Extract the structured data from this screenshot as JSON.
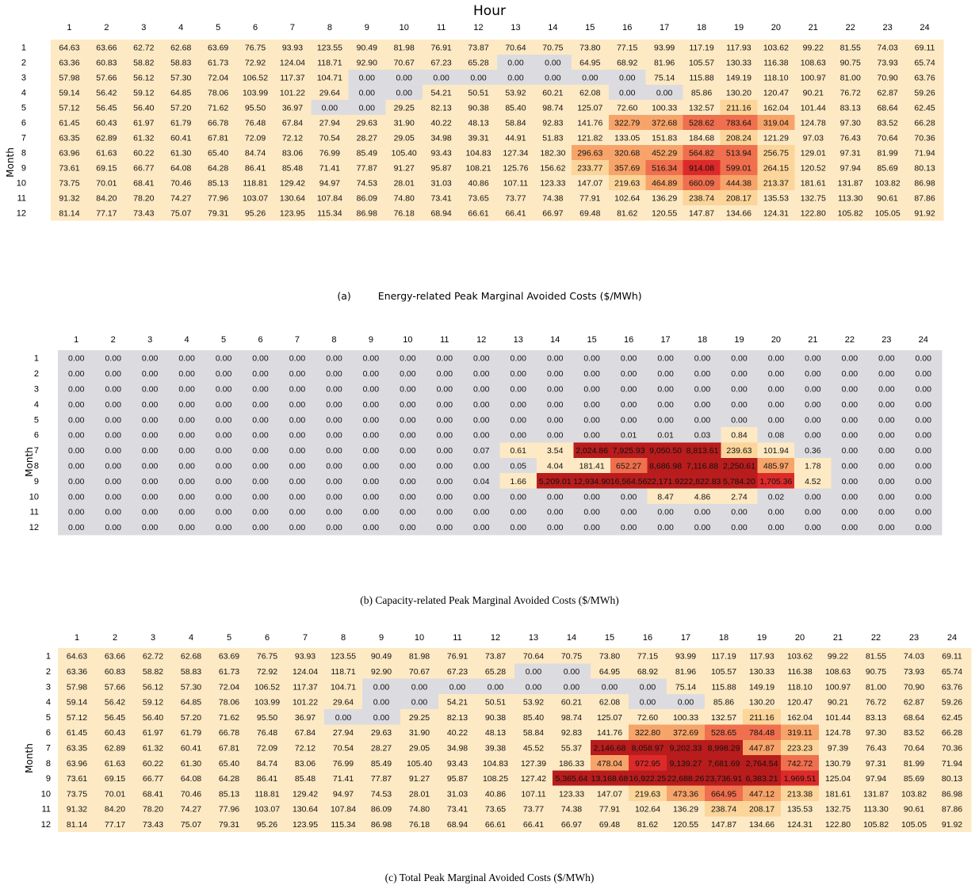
{
  "figure": {
    "top_title": "Hour",
    "caption_a_tag": "(a)",
    "caption_a_text": "Energy-related Peak Marginal Avoided Costs ($/MWh)",
    "caption_b": "(b) Capacity-related Peak Marginal Avoided Costs ($/MWh)",
    "caption_c": "(c) Total Peak Marginal Avoided Costs ($/MWh)"
  },
  "chart_data": [
    {
      "type": "heatmap",
      "title": "Energy-related Peak Marginal Avoided Costs ($/MWh)",
      "xlabel": "Hour",
      "ylabel": "Month",
      "x": [
        "1",
        "2",
        "3",
        "4",
        "5",
        "6",
        "7",
        "8",
        "9",
        "10",
        "11",
        "12",
        "13",
        "14",
        "15",
        "16",
        "17",
        "18",
        "19",
        "20",
        "21",
        "22",
        "23",
        "24"
      ],
      "y": [
        "1",
        "2",
        "3",
        "4",
        "5",
        "6",
        "7",
        "8",
        "9",
        "10",
        "11",
        "12"
      ],
      "values": [
        [
          "64.63",
          "63.66",
          "62.72",
          "62.68",
          "63.69",
          "76.75",
          "93.93",
          "123.55",
          "90.49",
          "81.98",
          "76.91",
          "73.87",
          "70.64",
          "70.75",
          "73.80",
          "77.15",
          "93.99",
          "117.19",
          "117.93",
          "103.62",
          "99.22",
          "81.55",
          "74.03",
          "69.11"
        ],
        [
          "63.36",
          "60.83",
          "58.82",
          "58.83",
          "61.73",
          "72.92",
          "124.04",
          "118.71",
          "92.90",
          "70.67",
          "67.23",
          "65.28",
          "0.00",
          "0.00",
          "64.95",
          "68.92",
          "81.96",
          "105.57",
          "130.33",
          "116.38",
          "108.63",
          "90.75",
          "73.93",
          "65.74"
        ],
        [
          "57.98",
          "57.66",
          "56.12",
          "57.30",
          "72.04",
          "106.52",
          "117.37",
          "104.71",
          "0.00",
          "0.00",
          "0.00",
          "0.00",
          "0.00",
          "0.00",
          "0.00",
          "0.00",
          "75.14",
          "115.88",
          "149.19",
          "118.10",
          "100.97",
          "81.00",
          "70.90",
          "63.76"
        ],
        [
          "59.14",
          "56.42",
          "59.12",
          "64.85",
          "78.06",
          "103.99",
          "101.22",
          "29.64",
          "0.00",
          "0.00",
          "54.21",
          "50.51",
          "53.92",
          "60.21",
          "62.08",
          "0.00",
          "0.00",
          "85.86",
          "130.20",
          "120.47",
          "90.21",
          "76.72",
          "62.87",
          "59.26"
        ],
        [
          "57.12",
          "56.45",
          "56.40",
          "57.20",
          "71.62",
          "95.50",
          "36.97",
          "0.00",
          "0.00",
          "29.25",
          "82.13",
          "90.38",
          "85.40",
          "98.74",
          "125.07",
          "72.60",
          "100.33",
          "132.57",
          "211.16",
          "162.04",
          "101.44",
          "83.13",
          "68.64",
          "62.45"
        ],
        [
          "61.45",
          "60.43",
          "61.97",
          "61.79",
          "66.78",
          "76.48",
          "67.84",
          "27.94",
          "29.63",
          "31.90",
          "40.22",
          "48.13",
          "58.84",
          "92.83",
          "141.76",
          "322.79",
          "372.68",
          "528.62",
          "783.64",
          "319.04",
          "124.78",
          "97.30",
          "83.52",
          "66.28"
        ],
        [
          "63.35",
          "62.89",
          "61.32",
          "60.41",
          "67.81",
          "72.09",
          "72.12",
          "70.54",
          "28.27",
          "29.05",
          "34.98",
          "39.31",
          "44.91",
          "51.83",
          "121.82",
          "133.05",
          "151.83",
          "184.68",
          "208.24",
          "121.29",
          "97.03",
          "76.43",
          "70.64",
          "70.36"
        ],
        [
          "63.96",
          "61.63",
          "60.22",
          "61.30",
          "65.40",
          "84.74",
          "83.06",
          "76.99",
          "85.49",
          "105.40",
          "93.43",
          "104.83",
          "127.34",
          "182.30",
          "296.63",
          "320.68",
          "452.29",
          "564.82",
          "513.94",
          "256.75",
          "129.01",
          "97.31",
          "81.99",
          "71.94"
        ],
        [
          "73.61",
          "69.15",
          "66.77",
          "64.08",
          "64.28",
          "86.41",
          "85.48",
          "71.41",
          "77.87",
          "91.27",
          "95.87",
          "108.21",
          "125.76",
          "156.62",
          "233.77",
          "357.69",
          "516.34",
          "914.08",
          "599.01",
          "264.15",
          "120.52",
          "97.94",
          "85.69",
          "80.13"
        ],
        [
          "73.75",
          "70.01",
          "68.41",
          "70.46",
          "85.13",
          "118.81",
          "129.42",
          "94.97",
          "74.53",
          "28.01",
          "31.03",
          "40.86",
          "107.11",
          "123.33",
          "147.07",
          "219.63",
          "464.89",
          "660.09",
          "444.38",
          "213.37",
          "181.61",
          "131.87",
          "103.82",
          "86.98"
        ],
        [
          "91.32",
          "84.20",
          "78.20",
          "74.27",
          "77.96",
          "103.07",
          "130.64",
          "107.84",
          "86.09",
          "74.80",
          "73.41",
          "73.65",
          "73.77",
          "74.38",
          "77.91",
          "102.64",
          "136.29",
          "238.74",
          "208.17",
          "135.53",
          "132.75",
          "113.30",
          "90.61",
          "87.86"
        ],
        [
          "81.14",
          "77.17",
          "73.43",
          "75.07",
          "79.31",
          "95.26",
          "123.95",
          "115.34",
          "86.98",
          "76.18",
          "68.94",
          "66.61",
          "66.41",
          "66.97",
          "69.48",
          "81.62",
          "120.55",
          "147.87",
          "134.66",
          "124.31",
          "122.80",
          "105.82",
          "105.05",
          "91.92"
        ]
      ]
    },
    {
      "type": "heatmap",
      "title": "Capacity-related Peak Marginal Avoided Costs ($/MWh)",
      "xlabel": "",
      "ylabel": "Month",
      "x": [
        "1",
        "2",
        "3",
        "4",
        "5",
        "6",
        "7",
        "8",
        "9",
        "10",
        "11",
        "12",
        "13",
        "14",
        "15",
        "16",
        "17",
        "18",
        "19",
        "20",
        "21",
        "22",
        "23",
        "24"
      ],
      "y": [
        "1",
        "2",
        "3",
        "4",
        "5",
        "6",
        "7",
        "8",
        "9",
        "10",
        "11",
        "12"
      ],
      "values": [
        [
          "0.00",
          "0.00",
          "0.00",
          "0.00",
          "0.00",
          "0.00",
          "0.00",
          "0.00",
          "0.00",
          "0.00",
          "0.00",
          "0.00",
          "0.00",
          "0.00",
          "0.00",
          "0.00",
          "0.00",
          "0.00",
          "0.00",
          "0.00",
          "0.00",
          "0.00",
          "0.00",
          "0.00"
        ],
        [
          "0.00",
          "0.00",
          "0.00",
          "0.00",
          "0.00",
          "0.00",
          "0.00",
          "0.00",
          "0.00",
          "0.00",
          "0.00",
          "0.00",
          "0.00",
          "0.00",
          "0.00",
          "0.00",
          "0.00",
          "0.00",
          "0.00",
          "0.00",
          "0.00",
          "0.00",
          "0.00",
          "0.00"
        ],
        [
          "0.00",
          "0.00",
          "0.00",
          "0.00",
          "0.00",
          "0.00",
          "0.00",
          "0.00",
          "0.00",
          "0.00",
          "0.00",
          "0.00",
          "0.00",
          "0.00",
          "0.00",
          "0.00",
          "0.00",
          "0.00",
          "0.00",
          "0.00",
          "0.00",
          "0.00",
          "0.00",
          "0.00"
        ],
        [
          "0.00",
          "0.00",
          "0.00",
          "0.00",
          "0.00",
          "0.00",
          "0.00",
          "0.00",
          "0.00",
          "0.00",
          "0.00",
          "0.00",
          "0.00",
          "0.00",
          "0.00",
          "0.00",
          "0.00",
          "0.00",
          "0.00",
          "0.00",
          "0.00",
          "0.00",
          "0.00",
          "0.00"
        ],
        [
          "0.00",
          "0.00",
          "0.00",
          "0.00",
          "0.00",
          "0.00",
          "0.00",
          "0.00",
          "0.00",
          "0.00",
          "0.00",
          "0.00",
          "0.00",
          "0.00",
          "0.00",
          "0.00",
          "0.00",
          "0.00",
          "0.00",
          "0.00",
          "0.00",
          "0.00",
          "0.00",
          "0.00"
        ],
        [
          "0.00",
          "0.00",
          "0.00",
          "0.00",
          "0.00",
          "0.00",
          "0.00",
          "0.00",
          "0.00",
          "0.00",
          "0.00",
          "0.00",
          "0.00",
          "0.00",
          "0.00",
          "0.01",
          "0.01",
          "0.03",
          "0.84",
          "0.08",
          "0.00",
          "0.00",
          "0.00",
          "0.00"
        ],
        [
          "0.00",
          "0.00",
          "0.00",
          "0.00",
          "0.00",
          "0.00",
          "0.00",
          "0.00",
          "0.00",
          "0.00",
          "0.00",
          "0.07",
          "0.61",
          "3.54",
          "2,024.86",
          "7,925.93",
          "9,050.50",
          "8,813.61",
          "239.63",
          "101.94",
          "0.36",
          "0.00",
          "0.00",
          "0.00"
        ],
        [
          "0.00",
          "0.00",
          "0.00",
          "0.00",
          "0.00",
          "0.00",
          "0.00",
          "0.00",
          "0.00",
          "0.00",
          "0.00",
          "0.00",
          "0.05",
          "4.04",
          "181.41",
          "652.27",
          "8,686.98",
          "7,116.88",
          "2,250.61",
          "485.97",
          "1.78",
          "0.00",
          "0.00",
          "0.00"
        ],
        [
          "0.00",
          "0.00",
          "0.00",
          "0.00",
          "0.00",
          "0.00",
          "0.00",
          "0.00",
          "0.00",
          "0.00",
          "0.00",
          "0.04",
          "1.66",
          "5,209.01",
          "12,934.90",
          "16,564.56",
          "22,171.92",
          "22,822.83",
          "5,784.20",
          "1,705.36",
          "4.52",
          "0.00",
          "0.00",
          "0.00"
        ],
        [
          "0.00",
          "0.00",
          "0.00",
          "0.00",
          "0.00",
          "0.00",
          "0.00",
          "0.00",
          "0.00",
          "0.00",
          "0.00",
          "0.00",
          "0.00",
          "0.00",
          "0.00",
          "0.00",
          "8.47",
          "4.86",
          "2.74",
          "0.02",
          "0.00",
          "0.00",
          "0.00",
          "0.00"
        ],
        [
          "0.00",
          "0.00",
          "0.00",
          "0.00",
          "0.00",
          "0.00",
          "0.00",
          "0.00",
          "0.00",
          "0.00",
          "0.00",
          "0.00",
          "0.00",
          "0.00",
          "0.00",
          "0.00",
          "0.00",
          "0.00",
          "0.00",
          "0.00",
          "0.00",
          "0.00",
          "0.00",
          "0.00"
        ],
        [
          "0.00",
          "0.00",
          "0.00",
          "0.00",
          "0.00",
          "0.00",
          "0.00",
          "0.00",
          "0.00",
          "0.00",
          "0.00",
          "0.00",
          "0.00",
          "0.00",
          "0.00",
          "0.00",
          "0.00",
          "0.00",
          "0.00",
          "0.00",
          "0.00",
          "0.00",
          "0.00",
          "0.00"
        ]
      ]
    },
    {
      "type": "heatmap",
      "title": "Total Peak Marginal Avoided Costs ($/MWh)",
      "xlabel": "",
      "ylabel": "Month",
      "x": [
        "1",
        "2",
        "3",
        "4",
        "5",
        "6",
        "7",
        "8",
        "9",
        "10",
        "11",
        "12",
        "13",
        "14",
        "15",
        "16",
        "17",
        "18",
        "19",
        "20",
        "21",
        "22",
        "23",
        "24"
      ],
      "y": [
        "1",
        "2",
        "3",
        "4",
        "5",
        "6",
        "7",
        "8",
        "9",
        "10",
        "11",
        "12"
      ],
      "values": [
        [
          "64.63",
          "63.66",
          "62.72",
          "62.68",
          "63.69",
          "76.75",
          "93.93",
          "123.55",
          "90.49",
          "81.98",
          "76.91",
          "73.87",
          "70.64",
          "70.75",
          "73.80",
          "77.15",
          "93.99",
          "117.19",
          "117.93",
          "103.62",
          "99.22",
          "81.55",
          "74.03",
          "69.11"
        ],
        [
          "63.36",
          "60.83",
          "58.82",
          "58.83",
          "61.73",
          "72.92",
          "124.04",
          "118.71",
          "92.90",
          "70.67",
          "67.23",
          "65.28",
          "0.00",
          "0.00",
          "64.95",
          "68.92",
          "81.96",
          "105.57",
          "130.33",
          "116.38",
          "108.63",
          "90.75",
          "73.93",
          "65.74"
        ],
        [
          "57.98",
          "57.66",
          "56.12",
          "57.30",
          "72.04",
          "106.52",
          "117.37",
          "104.71",
          "0.00",
          "0.00",
          "0.00",
          "0.00",
          "0.00",
          "0.00",
          "0.00",
          "0.00",
          "75.14",
          "115.88",
          "149.19",
          "118.10",
          "100.97",
          "81.00",
          "70.90",
          "63.76"
        ],
        [
          "59.14",
          "56.42",
          "59.12",
          "64.85",
          "78.06",
          "103.99",
          "101.22",
          "29.64",
          "0.00",
          "0.00",
          "54.21",
          "50.51",
          "53.92",
          "60.21",
          "62.08",
          "0.00",
          "0.00",
          "85.86",
          "130.20",
          "120.47",
          "90.21",
          "76.72",
          "62.87",
          "59.26"
        ],
        [
          "57.12",
          "56.45",
          "56.40",
          "57.20",
          "71.62",
          "95.50",
          "36.97",
          "0.00",
          "0.00",
          "29.25",
          "82.13",
          "90.38",
          "85.40",
          "98.74",
          "125.07",
          "72.60",
          "100.33",
          "132.57",
          "211.16",
          "162.04",
          "101.44",
          "83.13",
          "68.64",
          "62.45"
        ],
        [
          "61.45",
          "60.43",
          "61.97",
          "61.79",
          "66.78",
          "76.48",
          "67.84",
          "27.94",
          "29.63",
          "31.90",
          "40.22",
          "48.13",
          "58.84",
          "92.83",
          "141.76",
          "322.80",
          "372.69",
          "528.65",
          "784.48",
          "319.11",
          "124.78",
          "97.30",
          "83.52",
          "66.28"
        ],
        [
          "63.35",
          "62.89",
          "61.32",
          "60.41",
          "67.81",
          "72.09",
          "72.12",
          "70.54",
          "28.27",
          "29.05",
          "34.98",
          "39.38",
          "45.52",
          "55.37",
          "2,146.68",
          "8,058.97",
          "9,202.33",
          "8,998.29",
          "447.87",
          "223.23",
          "97.39",
          "76.43",
          "70.64",
          "70.36"
        ],
        [
          "63.96",
          "61.63",
          "60.22",
          "61.30",
          "65.40",
          "84.74",
          "83.06",
          "76.99",
          "85.49",
          "105.40",
          "93.43",
          "104.83",
          "127.39",
          "186.33",
          "478.04",
          "972.95",
          "9,139.27",
          "7,681.69",
          "2,764.54",
          "742.72",
          "130.79",
          "97.31",
          "81.99",
          "71.94"
        ],
        [
          "73.61",
          "69.15",
          "66.77",
          "64.08",
          "64.28",
          "86.41",
          "85.48",
          "71.41",
          "77.87",
          "91.27",
          "95.87",
          "108.25",
          "127.42",
          "5,365.64",
          "13,168.68",
          "16,922.25",
          "22,688.26",
          "23,736.91",
          "6,383.21",
          "1,969.51",
          "125.04",
          "97.94",
          "85.69",
          "80.13"
        ],
        [
          "73.75",
          "70.01",
          "68.41",
          "70.46",
          "85.13",
          "118.81",
          "129.42",
          "94.97",
          "74.53",
          "28.01",
          "31.03",
          "40.86",
          "107.11",
          "123.33",
          "147.07",
          "219.63",
          "473.36",
          "664.95",
          "447.12",
          "213.38",
          "181.61",
          "131.87",
          "103.82",
          "86.98"
        ],
        [
          "91.32",
          "84.20",
          "78.20",
          "74.27",
          "77.96",
          "103.07",
          "130.64",
          "107.84",
          "86.09",
          "74.80",
          "73.41",
          "73.65",
          "73.77",
          "74.38",
          "77.91",
          "102.64",
          "136.29",
          "238.74",
          "208.17",
          "135.53",
          "132.75",
          "113.30",
          "90.61",
          "87.86"
        ],
        [
          "81.14",
          "77.17",
          "73.43",
          "75.07",
          "79.31",
          "95.26",
          "123.95",
          "115.34",
          "86.98",
          "76.18",
          "68.94",
          "66.61",
          "66.41",
          "66.97",
          "69.48",
          "81.62",
          "120.55",
          "147.87",
          "134.66",
          "124.31",
          "122.80",
          "105.82",
          "105.05",
          "91.92"
        ]
      ]
    }
  ],
  "colors": {
    "gray": "#dcdce0",
    "cream": "#fde9c3",
    "light_orange": "#fbd59a",
    "orange": "#f7a46a",
    "red_orange": "#ef6f4e",
    "red": "#dc2a2a",
    "dark_red": "#b81c1c"
  }
}
